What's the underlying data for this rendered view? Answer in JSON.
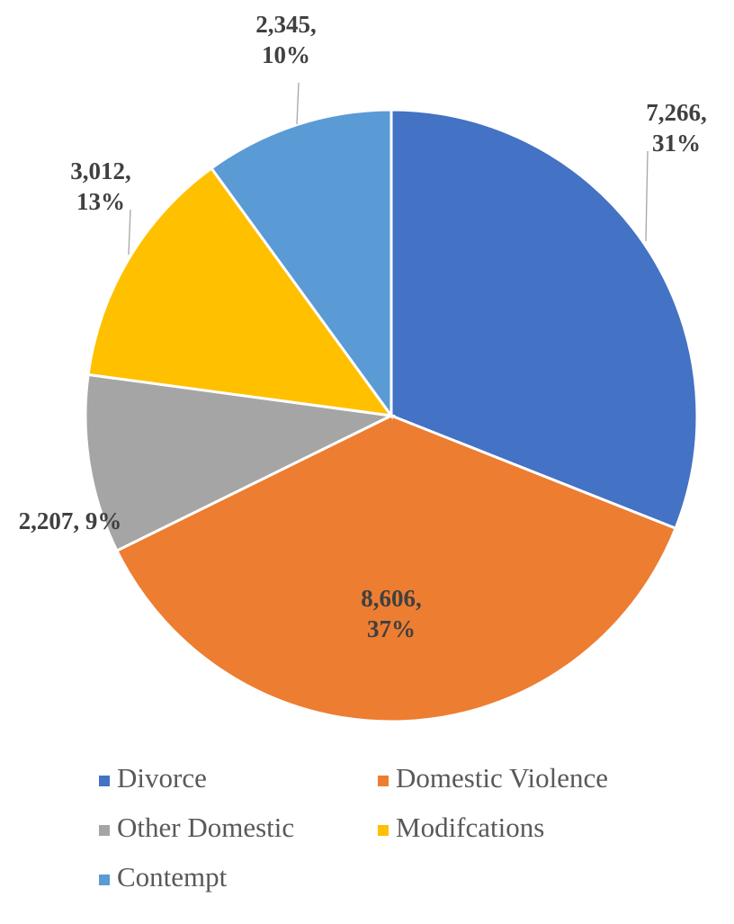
{
  "chart_data": {
    "type": "pie",
    "categories": [
      "Divorce",
      "Domestic Violence",
      "Other Domestic",
      "Modifcations",
      "Contempt"
    ],
    "values": [
      7266,
      8606,
      2207,
      3012,
      2345
    ],
    "value_labels": [
      "7,266, 31%",
      "8,606, 37%",
      "2,207, 9%",
      "3,012, 13%",
      "2,345, 10%"
    ],
    "colors": [
      "#4472c4",
      "#ed7d31",
      "#a5a5a5",
      "#ffc000",
      "#5b9bd5"
    ],
    "legend": "bottom"
  }
}
